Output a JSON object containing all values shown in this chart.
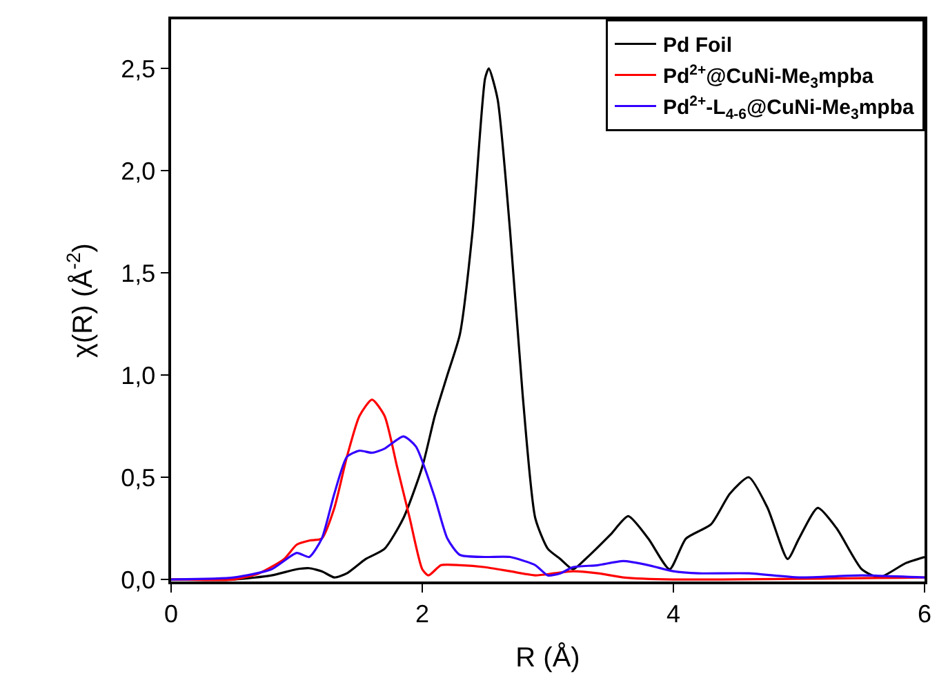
{
  "chart_data": {
    "type": "line",
    "xlabel": "R (Å)",
    "ylabel": "χ(R) (Å$^{-2}$)",
    "xlim": [
      0,
      6
    ],
    "xticks": [
      0,
      2,
      4,
      6
    ],
    "ylim": [
      -0.01,
      2.74
    ],
    "yticks": [
      {
        "value": 0,
        "label": "0,0"
      },
      {
        "value": 0.5,
        "label": "0,5"
      },
      {
        "value": 1.0,
        "label": "1,0"
      },
      {
        "value": 1.5,
        "label": "1,5"
      },
      {
        "value": 2.0,
        "label": "2,0"
      },
      {
        "value": 2.5,
        "label": "2,5"
      }
    ],
    "legend": "top right",
    "marker": "none",
    "line_style": "solid",
    "series": [
      {
        "name": "Pd Foil",
        "color": "#000000",
        "x": [
          0,
          0.5,
          0.8,
          1.0,
          1.1,
          1.2,
          1.3,
          1.4,
          1.55,
          1.7,
          1.85,
          2.0,
          2.1,
          2.2,
          2.3,
          2.4,
          2.5,
          2.53,
          2.6,
          2.7,
          2.8,
          2.9,
          3.0,
          3.1,
          3.2,
          3.3,
          3.5,
          3.64,
          3.8,
          3.97,
          4.1,
          4.3,
          4.45,
          4.6,
          4.75,
          4.91,
          5.0,
          5.15,
          5.3,
          5.5,
          5.64,
          5.85,
          6.0
        ],
        "values": [
          0,
          0,
          0.02,
          0.05,
          0.055,
          0.04,
          0.01,
          0.03,
          0.1,
          0.15,
          0.3,
          0.55,
          0.8,
          1.0,
          1.2,
          1.7,
          2.45,
          2.5,
          2.35,
          1.7,
          0.9,
          0.3,
          0.15,
          0.1,
          0.05,
          0.1,
          0.22,
          0.31,
          0.2,
          0.05,
          0.2,
          0.27,
          0.42,
          0.5,
          0.35,
          0.1,
          0.2,
          0.35,
          0.25,
          0.05,
          0.01,
          0.08,
          0.11
        ]
      },
      {
        "name": "Pd$^{2+}$@CuNi-Me$_{3}$mpba",
        "color": "#ff0000",
        "x": [
          0,
          0.5,
          0.7,
          0.9,
          1.0,
          1.1,
          1.2,
          1.3,
          1.4,
          1.5,
          1.6,
          1.7,
          1.8,
          1.9,
          2.0,
          2.05,
          2.15,
          2.3,
          2.5,
          2.7,
          2.9,
          3.05,
          3.2,
          3.4,
          3.6,
          4.0,
          6.0
        ],
        "values": [
          0,
          0,
          0.03,
          0.1,
          0.17,
          0.19,
          0.2,
          0.35,
          0.6,
          0.8,
          0.88,
          0.8,
          0.55,
          0.3,
          0.05,
          0.02,
          0.07,
          0.07,
          0.06,
          0.04,
          0.02,
          0.03,
          0.04,
          0.03,
          0.01,
          0.0,
          0.01
        ]
      },
      {
        "name": "Pd$^{2+}$-L$_{4-6}$@CuNi-Me$_{3}$mpba",
        "color": "#3300ff",
        "x": [
          0,
          0.5,
          0.8,
          1.0,
          1.1,
          1.2,
          1.3,
          1.4,
          1.5,
          1.6,
          1.7,
          1.85,
          1.95,
          2.1,
          2.2,
          2.3,
          2.5,
          2.7,
          2.9,
          3.0,
          3.1,
          3.2,
          3.4,
          3.6,
          3.8,
          4.0,
          4.2,
          4.6,
          5.0,
          5.5,
          6.0
        ],
        "values": [
          0,
          0.01,
          0.05,
          0.13,
          0.11,
          0.2,
          0.42,
          0.6,
          0.63,
          0.62,
          0.64,
          0.7,
          0.65,
          0.4,
          0.2,
          0.12,
          0.11,
          0.11,
          0.07,
          0.02,
          0.03,
          0.06,
          0.07,
          0.09,
          0.07,
          0.04,
          0.03,
          0.03,
          0.01,
          0.02,
          0.01
        ]
      }
    ]
  }
}
